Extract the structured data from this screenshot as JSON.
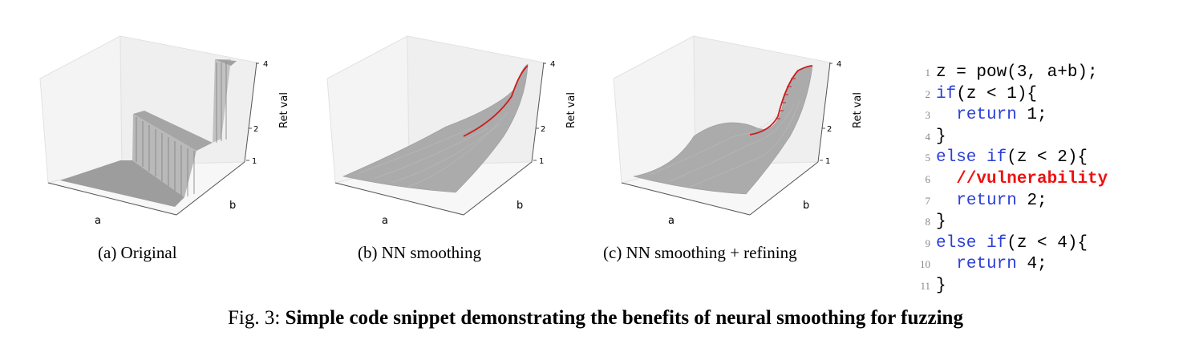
{
  "subfigures": [
    {
      "id": "a",
      "caption": "(a) Original",
      "xlabel": "a",
      "ylabel": "b",
      "zlabel": "Ret val",
      "zticks": [
        "1",
        "2",
        "4"
      ]
    },
    {
      "id": "b",
      "caption": "(b) NN smoothing",
      "xlabel": "a",
      "ylabel": "b",
      "zlabel": "Ret val",
      "zticks": [
        "1",
        "2",
        "4"
      ]
    },
    {
      "id": "c",
      "caption": "(c) NN smoothing + refining",
      "xlabel": "a",
      "ylabel": "b",
      "zlabel": "Ret val",
      "zticks": [
        "1",
        "2",
        "4"
      ]
    }
  ],
  "chart_data": [
    {
      "type": "surface",
      "title": "(a) Original",
      "xlabel": "a",
      "ylabel": "b",
      "zlabel": "Ret val",
      "zlim": [
        1,
        4
      ],
      "zticks": [
        1,
        2,
        4
      ],
      "surface": "step function of a+b with plateaus at 1, 2, 4"
    },
    {
      "type": "surface",
      "title": "(b) NN smoothing",
      "xlabel": "a",
      "ylabel": "b",
      "zlabel": "Ret val",
      "zlim": [
        1,
        4
      ],
      "zticks": [
        1,
        2,
        4
      ],
      "surface": "smooth sigmoid-like rise from 1 to 4",
      "highlight": "red gradient path"
    },
    {
      "type": "surface",
      "title": "(c) NN smoothing + refining",
      "xlabel": "a",
      "ylabel": "b",
      "zlabel": "Ret val",
      "zlim": [
        1,
        4
      ],
      "zticks": [
        1,
        2,
        4
      ],
      "surface": "smooth two-step rise 1 to 2 to 4",
      "highlight": "red gradient path with markers"
    }
  ],
  "code": {
    "lines": [
      {
        "n": "1",
        "parts": [
          {
            "t": "z = pow(3, a+b);",
            "c": "plain"
          }
        ]
      },
      {
        "n": "2",
        "parts": [
          {
            "t": "if",
            "c": "kw"
          },
          {
            "t": "(z < 1){",
            "c": "plain"
          }
        ]
      },
      {
        "n": "3",
        "parts": [
          {
            "t": "  ",
            "c": "plain"
          },
          {
            "t": "return",
            "c": "kw"
          },
          {
            "t": " 1;",
            "c": "plain"
          }
        ]
      },
      {
        "n": "4",
        "parts": [
          {
            "t": "}",
            "c": "plain"
          }
        ]
      },
      {
        "n": "5",
        "parts": [
          {
            "t": "else if",
            "c": "kw"
          },
          {
            "t": "(z < 2){",
            "c": "plain"
          }
        ]
      },
      {
        "n": "6",
        "parts": [
          {
            "t": "  ",
            "c": "plain"
          },
          {
            "t": "//vulnerability",
            "c": "vuln"
          }
        ]
      },
      {
        "n": "7",
        "parts": [
          {
            "t": "  ",
            "c": "plain"
          },
          {
            "t": "return",
            "c": "kw"
          },
          {
            "t": " 2;",
            "c": "plain"
          }
        ]
      },
      {
        "n": "8",
        "parts": [
          {
            "t": "}",
            "c": "plain"
          }
        ]
      },
      {
        "n": "9",
        "parts": [
          {
            "t": "else if",
            "c": "kw"
          },
          {
            "t": "(z < 4){",
            "c": "plain"
          }
        ]
      },
      {
        "n": "10",
        "parts": [
          {
            "t": "  ",
            "c": "plain"
          },
          {
            "t": "return",
            "c": "kw"
          },
          {
            "t": " 4;",
            "c": "plain"
          }
        ]
      },
      {
        "n": "11",
        "parts": [
          {
            "t": "}",
            "c": "plain"
          }
        ]
      }
    ]
  },
  "figure_caption": {
    "prefix": "Fig. 3: ",
    "text": "Simple code snippet demonstrating the benefits of neural smoothing for fuzzing"
  },
  "colors": {
    "keyword": "#2c3fd6",
    "vulnerability": "#ee1111",
    "surface": "#a7a7a7",
    "path": "#cc1d1d"
  }
}
